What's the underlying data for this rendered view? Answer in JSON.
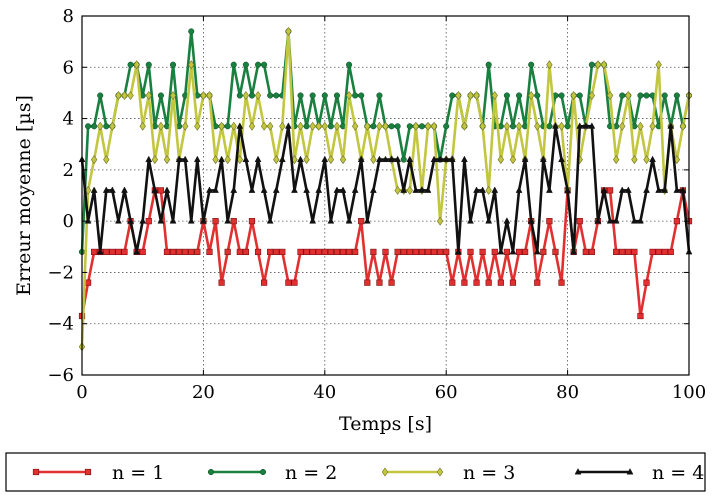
{
  "chart_data": {
    "type": "line",
    "title": "",
    "xlabel": "Temps [s]",
    "ylabel": "Erreur moyenne [µs]",
    "xlim": [
      0,
      100
    ],
    "ylim": [
      -6,
      8
    ],
    "xticks": [
      "0",
      "20",
      "40",
      "60",
      "80",
      "100"
    ],
    "yticks": [
      "8",
      "6",
      "4",
      "2",
      "0",
      "−2",
      "−4",
      "−6"
    ],
    "grid": true,
    "legend_position": "bottom",
    "x": [
      0,
      1,
      2,
      3,
      4,
      5,
      6,
      7,
      8,
      9,
      10,
      11,
      12,
      13,
      14,
      15,
      16,
      17,
      18,
      19,
      20,
      21,
      22,
      23,
      24,
      25,
      26,
      27,
      28,
      29,
      30,
      31,
      32,
      33,
      34,
      35,
      36,
      37,
      38,
      39,
      40,
      41,
      42,
      43,
      44,
      45,
      46,
      47,
      48,
      49,
      50,
      51,
      52,
      53,
      54,
      55,
      56,
      57,
      58,
      59,
      60,
      61,
      62,
      63,
      64,
      65,
      66,
      67,
      68,
      69,
      70,
      71,
      72,
      73,
      74,
      75,
      76,
      77,
      78,
      79,
      80,
      81,
      82,
      83,
      84,
      85,
      86,
      87,
      88,
      89,
      90,
      91,
      92,
      93,
      94,
      95,
      96,
      97,
      98,
      99,
      100
    ],
    "series": [
      {
        "name": "n = 1",
        "color": "#e03030",
        "marker": "square",
        "values": [
          -3.7,
          -2.4,
          -1.2,
          -1.2,
          -1.2,
          -1.2,
          -1.2,
          -1.2,
          0,
          -1.2,
          -1.2,
          0,
          1.2,
          1.2,
          -1.2,
          -1.2,
          -1.2,
          -1.2,
          -1.2,
          -1.2,
          0,
          -1.2,
          0,
          -2.4,
          -1.2,
          0,
          -1.2,
          -1.2,
          0,
          -1.2,
          -2.4,
          -1.2,
          -1.2,
          -1.2,
          -2.4,
          -2.4,
          -1.2,
          -1.2,
          -1.2,
          -1.2,
          -1.2,
          -1.2,
          -1.2,
          -1.2,
          -1.2,
          -1.2,
          0,
          -2.4,
          -1.2,
          -2.4,
          -1.2,
          -2.4,
          -1.2,
          -1.2,
          -1.2,
          -1.2,
          -1.2,
          -1.2,
          -1.2,
          -1.2,
          -1.2,
          -2.4,
          -1.2,
          -2.4,
          -1.2,
          -2.4,
          -1.2,
          -2.4,
          -1.2,
          -2.4,
          -1.2,
          -2.4,
          -1.2,
          -1.2,
          0,
          -2.4,
          -1.2,
          0,
          -1.2,
          -2.4,
          1.2,
          -1.2,
          0,
          -1.2,
          -1.2,
          0,
          1.2,
          1.2,
          -1.2,
          -1.2,
          -1.2,
          -1.2,
          -3.7,
          -2.4,
          -1.2,
          -1.2,
          -1.2,
          -1.2,
          0,
          1.2,
          0
        ]
      },
      {
        "name": "n = 2",
        "color": "#1a8040",
        "marker": "circle",
        "values": [
          -1.2,
          3.7,
          3.7,
          4.9,
          3.7,
          3.7,
          4.9,
          4.9,
          6.1,
          6.1,
          4.9,
          6.1,
          3.7,
          4.9,
          3.7,
          6.1,
          3.7,
          4.9,
          7.4,
          4.9,
          4.9,
          4.9,
          3.7,
          3.7,
          3.7,
          6.1,
          4.9,
          6.1,
          4.9,
          6.1,
          6.1,
          4.9,
          4.9,
          4.9,
          7.4,
          3.7,
          4.9,
          3.7,
          4.9,
          3.7,
          4.9,
          3.7,
          4.9,
          3.7,
          6.1,
          4.9,
          4.9,
          3.7,
          3.7,
          4.9,
          3.7,
          3.7,
          3.7,
          2.4,
          3.7,
          3.7,
          3.7,
          3.7,
          3.7,
          2.4,
          3.7,
          4.9,
          4.9,
          3.7,
          4.9,
          4.9,
          3.7,
          6.1,
          3.7,
          3.7,
          4.9,
          3.7,
          4.9,
          3.7,
          6.1,
          4.9,
          3.7,
          3.7,
          4.9,
          4.9,
          3.7,
          4.9,
          4.9,
          3.7,
          6.1,
          6.1,
          6.1,
          3.7,
          3.7,
          4.9,
          4.9,
          3.7,
          4.9,
          4.9,
          4.9,
          3.7,
          4.9,
          3.7,
          4.9,
          3.7,
          4.9
        ]
      },
      {
        "name": "n = 3",
        "color": "#c2c640",
        "marker": "diamond",
        "values": [
          -4.9,
          1.2,
          2.4,
          3.7,
          2.4,
          3.7,
          4.9,
          4.9,
          4.9,
          6.1,
          3.7,
          4.9,
          2.4,
          3.7,
          2.4,
          4.9,
          2.4,
          3.7,
          6.1,
          3.7,
          4.9,
          4.9,
          2.4,
          3.7,
          2.4,
          3.7,
          2.4,
          4.9,
          3.7,
          4.9,
          3.7,
          3.7,
          2.4,
          3.7,
          7.4,
          2.4,
          3.7,
          2.4,
          3.7,
          3.7,
          3.7,
          2.4,
          3.7,
          2.4,
          4.9,
          3.7,
          2.4,
          3.7,
          2.4,
          3.7,
          3.7,
          2.4,
          1.2,
          1.2,
          1.2,
          3.7,
          1.2,
          3.7,
          3.7,
          0,
          2.4,
          2.4,
          4.9,
          3.7,
          4.9,
          4.9,
          3.7,
          1.2,
          4.9,
          2.4,
          3.7,
          2.4,
          3.7,
          2.4,
          4.9,
          3.7,
          2.4,
          6.1,
          3.7,
          3.7,
          1.2,
          4.9,
          2.4,
          3.7,
          4.9,
          6.1,
          6.1,
          4.9,
          2.4,
          3.7,
          4.9,
          2.4,
          3.7,
          2.4,
          3.7,
          6.1,
          1.2,
          3.7,
          2.4,
          3.7,
          4.9
        ]
      },
      {
        "name": "n = 4",
        "color": "#111111",
        "marker": "triangle",
        "values": [
          2.4,
          0,
          1.2,
          -1.2,
          1.2,
          1.2,
          0,
          1.2,
          0,
          -1.2,
          0,
          2.4,
          1.2,
          0,
          1.2,
          0,
          2.4,
          2.4,
          0,
          2.4,
          0,
          1.2,
          1.2,
          2.4,
          0,
          1.2,
          3.7,
          2.4,
          1.2,
          2.4,
          1.2,
          0,
          1.2,
          2.4,
          3.7,
          1.2,
          2.4,
          1.2,
          0,
          1.2,
          2.4,
          0,
          1.2,
          1.2,
          0,
          1.2,
          2.4,
          0,
          1.2,
          2.4,
          2.4,
          2.4,
          2.4,
          1.2,
          2.4,
          1.2,
          1.2,
          1.2,
          2.4,
          2.4,
          2.4,
          2.4,
          -1.2,
          2.4,
          0,
          1.2,
          1.2,
          0,
          1.2,
          -1.2,
          0,
          -1.2,
          1.2,
          2.4,
          0,
          -1.2,
          2.4,
          1.2,
          3.7,
          2.4,
          1.2,
          -1.2,
          3.7,
          3.7,
          3.7,
          0,
          1.2,
          0,
          0,
          1.2,
          1.2,
          0,
          0,
          1.2,
          2.4,
          1.2,
          1.2,
          3.7,
          1.2,
          1.2,
          -1.2
        ]
      }
    ]
  }
}
